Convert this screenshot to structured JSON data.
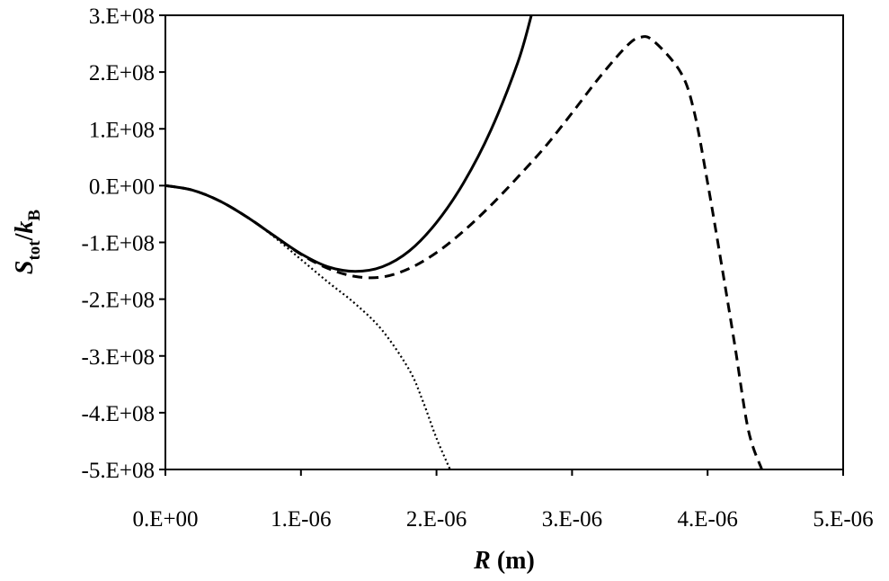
{
  "chart_data": {
    "type": "line",
    "xlabel": {
      "var": "R",
      "unit": " (m)"
    },
    "ylabel": {
      "S": "S",
      "S_sub": "tot",
      "slash": "/",
      "k": "k",
      "k_sub": "B"
    },
    "xlim": [
      0,
      5e-06
    ],
    "ylim": [
      -500000000,
      300000000
    ],
    "x_ticks": [
      {
        "value": 0,
        "label": "0.E+00"
      },
      {
        "value": 1e-06,
        "label": "1.E-06"
      },
      {
        "value": 2e-06,
        "label": "2.E-06"
      },
      {
        "value": 3e-06,
        "label": "3.E-06"
      },
      {
        "value": 4e-06,
        "label": "4.E-06"
      },
      {
        "value": 5e-06,
        "label": "5.E-06"
      }
    ],
    "y_ticks": [
      {
        "value": 300000000,
        "label": "3.E+08"
      },
      {
        "value": 200000000,
        "label": "2.E+08"
      },
      {
        "value": 100000000,
        "label": "1.E+08"
      },
      {
        "value": 0,
        "label": "0.E+00"
      },
      {
        "value": -100000000,
        "label": "-1.E+08"
      },
      {
        "value": -200000000,
        "label": "-2.E+08"
      },
      {
        "value": -300000000,
        "label": "-3.E+08"
      },
      {
        "value": -400000000,
        "label": "-4.E+08"
      },
      {
        "value": -500000000,
        "label": "-5.E+08"
      }
    ],
    "grid": false,
    "legend": "none",
    "series": [
      {
        "style": "solid",
        "color": "#000000",
        "x": [
          0,
          2e-07,
          4e-07,
          6e-07,
          8e-07,
          1e-06,
          1.2e-06,
          1.4e-06,
          1.6e-06,
          1.8e-06,
          2e-06,
          2.2e-06,
          2.4e-06,
          2.6e-06,
          2.7e-06
        ],
        "y": [
          0,
          -8000000,
          -27000000,
          -55000000,
          -88000000,
          -120000000,
          -143000000,
          -151000000,
          -143000000,
          -115000000,
          -65000000,
          5000000,
          97000000,
          217000000,
          300000000
        ]
      },
      {
        "style": "dashed",
        "color": "#000000",
        "x": [
          0,
          2e-07,
          4e-07,
          6e-07,
          8e-07,
          1e-06,
          1.2e-06,
          1.4e-06,
          1.6e-06,
          1.8e-06,
          2e-06,
          2.2e-06,
          2.4e-06,
          2.6e-06,
          2.8e-06,
          3e-06,
          3.2e-06,
          3.4e-06,
          3.5e-06,
          3.6e-06,
          3.8e-06,
          3.9e-06,
          4e-06,
          4.1e-06,
          4.2e-06,
          4.3e-06,
          4.4e-06
        ],
        "y": [
          0,
          -8000000,
          -27000000,
          -55000000,
          -88000000,
          -121000000,
          -146000000,
          -160000000,
          -161000000,
          -146000000,
          -118000000,
          -80000000,
          -35000000,
          15000000,
          68000000,
          128000000,
          190000000,
          245000000,
          261000000,
          255000000,
          200000000,
          131000000,
          5000000,
          -135000000,
          -280000000,
          -430000000,
          -500000000
        ]
      },
      {
        "style": "dotted",
        "color": "#000000",
        "x": [
          0,
          2e-07,
          4e-07,
          6e-07,
          8e-07,
          1e-06,
          1.2e-06,
          1.4e-06,
          1.6e-06,
          1.8e-06,
          1.9e-06,
          2e-06,
          2.1e-06
        ],
        "y": [
          0,
          -8000000,
          -27000000,
          -55000000,
          -90000000,
          -130000000,
          -170000000,
          -208000000,
          -255000000,
          -325000000,
          -380000000,
          -445000000,
          -500000000
        ]
      }
    ]
  }
}
